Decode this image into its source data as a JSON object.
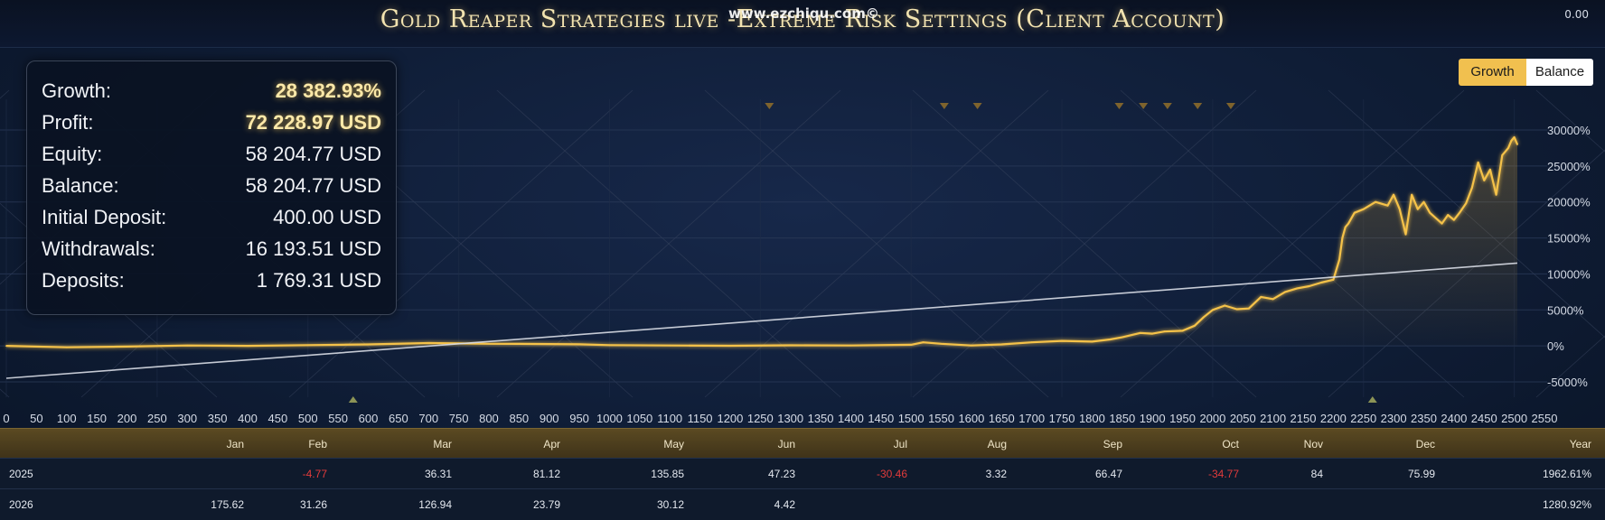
{
  "header": {
    "title": "Gold Reaper Strategies live -Extreme Risk Settings (Client Account)",
    "watermark": "www.ezchiqu.com©",
    "top_right_value": "0.00"
  },
  "stats": [
    {
      "label": "Growth:",
      "value": "28 382.93%",
      "highlight": true
    },
    {
      "label": "Profit:",
      "value": "72 228.97 USD",
      "highlight": true
    },
    {
      "label": "Equity:",
      "value": "58 204.77 USD",
      "highlight": false
    },
    {
      "label": "Balance:",
      "value": "58 204.77 USD",
      "highlight": false
    },
    {
      "label": "Initial Deposit:",
      "value": "400.00 USD",
      "highlight": false
    },
    {
      "label": "Withdrawals:",
      "value": "16 193.51 USD",
      "highlight": false
    },
    {
      "label": "Deposits:",
      "value": "1 769.31 USD",
      "highlight": false
    }
  ],
  "toggles": {
    "growth": "Growth",
    "balance": "Balance",
    "active": "growth"
  },
  "colors": {
    "growth_line": "#f5c24a",
    "trend_line": "#d9dde6",
    "grid": "#2a3a58",
    "negative": "#e23b3b",
    "header_gold": "#5b4a22"
  },
  "chart_data": {
    "type": "line",
    "title": "",
    "xlabel": "",
    "ylabel": "",
    "xlim": [
      0,
      2550
    ],
    "ylim": [
      -5000,
      30000
    ],
    "x_ticks": [
      0,
      50,
      100,
      150,
      200,
      250,
      300,
      350,
      400,
      450,
      500,
      550,
      600,
      650,
      700,
      750,
      800,
      850,
      900,
      950,
      1000,
      1050,
      1100,
      1150,
      1200,
      1250,
      1300,
      1350,
      1400,
      1450,
      1500,
      1550,
      1600,
      1650,
      1700,
      1750,
      1800,
      1850,
      1900,
      1950,
      2000,
      2050,
      2100,
      2150,
      2200,
      2250,
      2300,
      2350,
      2400,
      2450,
      2500,
      2550
    ],
    "y_ticks": [
      {
        "value": 30000,
        "label": "30000%"
      },
      {
        "value": 25000,
        "label": "25000%"
      },
      {
        "value": 20000,
        "label": "20000%"
      },
      {
        "value": 15000,
        "label": "15000%"
      },
      {
        "value": 10000,
        "label": "10000%"
      },
      {
        "value": 5000,
        "label": "5000%"
      },
      {
        "value": 0,
        "label": "0%"
      },
      {
        "value": -5000,
        "label": "-5000%"
      }
    ],
    "series": [
      {
        "x": [
          0,
          100,
          200,
          300,
          400,
          500,
          600,
          700,
          750,
          800,
          850,
          900,
          950,
          1000,
          1100,
          1200,
          1300,
          1400,
          1500,
          1520,
          1550,
          1600,
          1650,
          1700,
          1750,
          1800,
          1830,
          1850,
          1880,
          1900,
          1920,
          1950,
          1970,
          1985,
          2000,
          2020,
          2040,
          2060,
          2080,
          2100,
          2120,
          2140,
          2160,
          2180,
          2200,
          2210,
          2215,
          2220,
          2225,
          2235,
          2250,
          2270,
          2290,
          2300,
          2310,
          2320,
          2330,
          2340,
          2350,
          2360,
          2380,
          2390,
          2400,
          2410,
          2420,
          2430,
          2440,
          2450,
          2460,
          2470,
          2480,
          2490,
          2495,
          2500,
          2505
        ],
        "y": [
          0,
          -200,
          -100,
          50,
          0,
          100,
          200,
          400,
          350,
          300,
          280,
          250,
          220,
          100,
          50,
          20,
          80,
          60,
          150,
          500,
          300,
          60,
          200,
          500,
          700,
          600,
          900,
          1200,
          1800,
          1700,
          2000,
          2100,
          2800,
          4000,
          5000,
          5600,
          5100,
          5200,
          6800,
          6500,
          7500,
          8000,
          8300,
          8800,
          9200,
          12000,
          15000,
          16500,
          17000,
          18500,
          19000,
          20000,
          19500,
          21000,
          19000,
          15500,
          21000,
          19000,
          20000,
          18500,
          17000,
          18200,
          17500,
          18600,
          19800,
          22000,
          25500,
          23000,
          24500,
          21000,
          26500,
          27500,
          28500,
          29000,
          28000
        ]
      },
      {
        "x": [
          0,
          2505
        ],
        "y": [
          -4500,
          11500
        ]
      }
    ],
    "event_markers_top": [
      1265,
      1555,
      1610,
      1845,
      1885,
      1925,
      1975,
      2030
    ],
    "event_markers_bottom": [
      575,
      2265
    ],
    "grid": true
  },
  "monthly_table": {
    "headers": [
      "Jan",
      "Feb",
      "Mar",
      "Apr",
      "May",
      "Jun",
      "Jul",
      "Aug",
      "Sep",
      "Oct",
      "Nov",
      "Dec",
      "Year"
    ],
    "rows": [
      {
        "year": "2025",
        "values": [
          "",
          "-4.77",
          "36.31",
          "81.12",
          "135.85",
          "47.23",
          "-30.46",
          "3.32",
          "66.47",
          "-34.77",
          "84",
          "75.99",
          "1962.61%"
        ]
      },
      {
        "year": "2026",
        "values": [
          "175.62",
          "31.26",
          "126.94",
          "23.79",
          "30.12",
          "4.42",
          "",
          "",
          "",
          "",
          "",
          "",
          "1280.92%"
        ]
      }
    ]
  }
}
